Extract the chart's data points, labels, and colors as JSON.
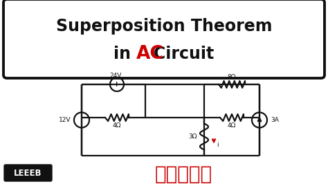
{
  "bg_color": "#ffffff",
  "title_line1": "Superposition Theorem",
  "title_line2_pre": "in ",
  "title_line2_ac": "AC",
  "title_line2_post": " Circuit",
  "leeeb_bg": "#111111",
  "leeeb_text": "LEEEB",
  "bangla_text": "বাংলা",
  "bangla_color": "#cc0000",
  "leeeb_color": "#ffffff",
  "wire_color": "#111111",
  "current_arrow_color": "#cc0000",
  "label_24V": "24V",
  "label_12V": "12V",
  "label_3A": "3A",
  "label_8ohm": "8Ω",
  "label_4ohm_left": "4Ω",
  "label_4ohm_right": "4Ω",
  "label_3ohm": "3Ω",
  "label_i": "i",
  "figw": 4.74,
  "figh": 2.66,
  "dpi": 100
}
